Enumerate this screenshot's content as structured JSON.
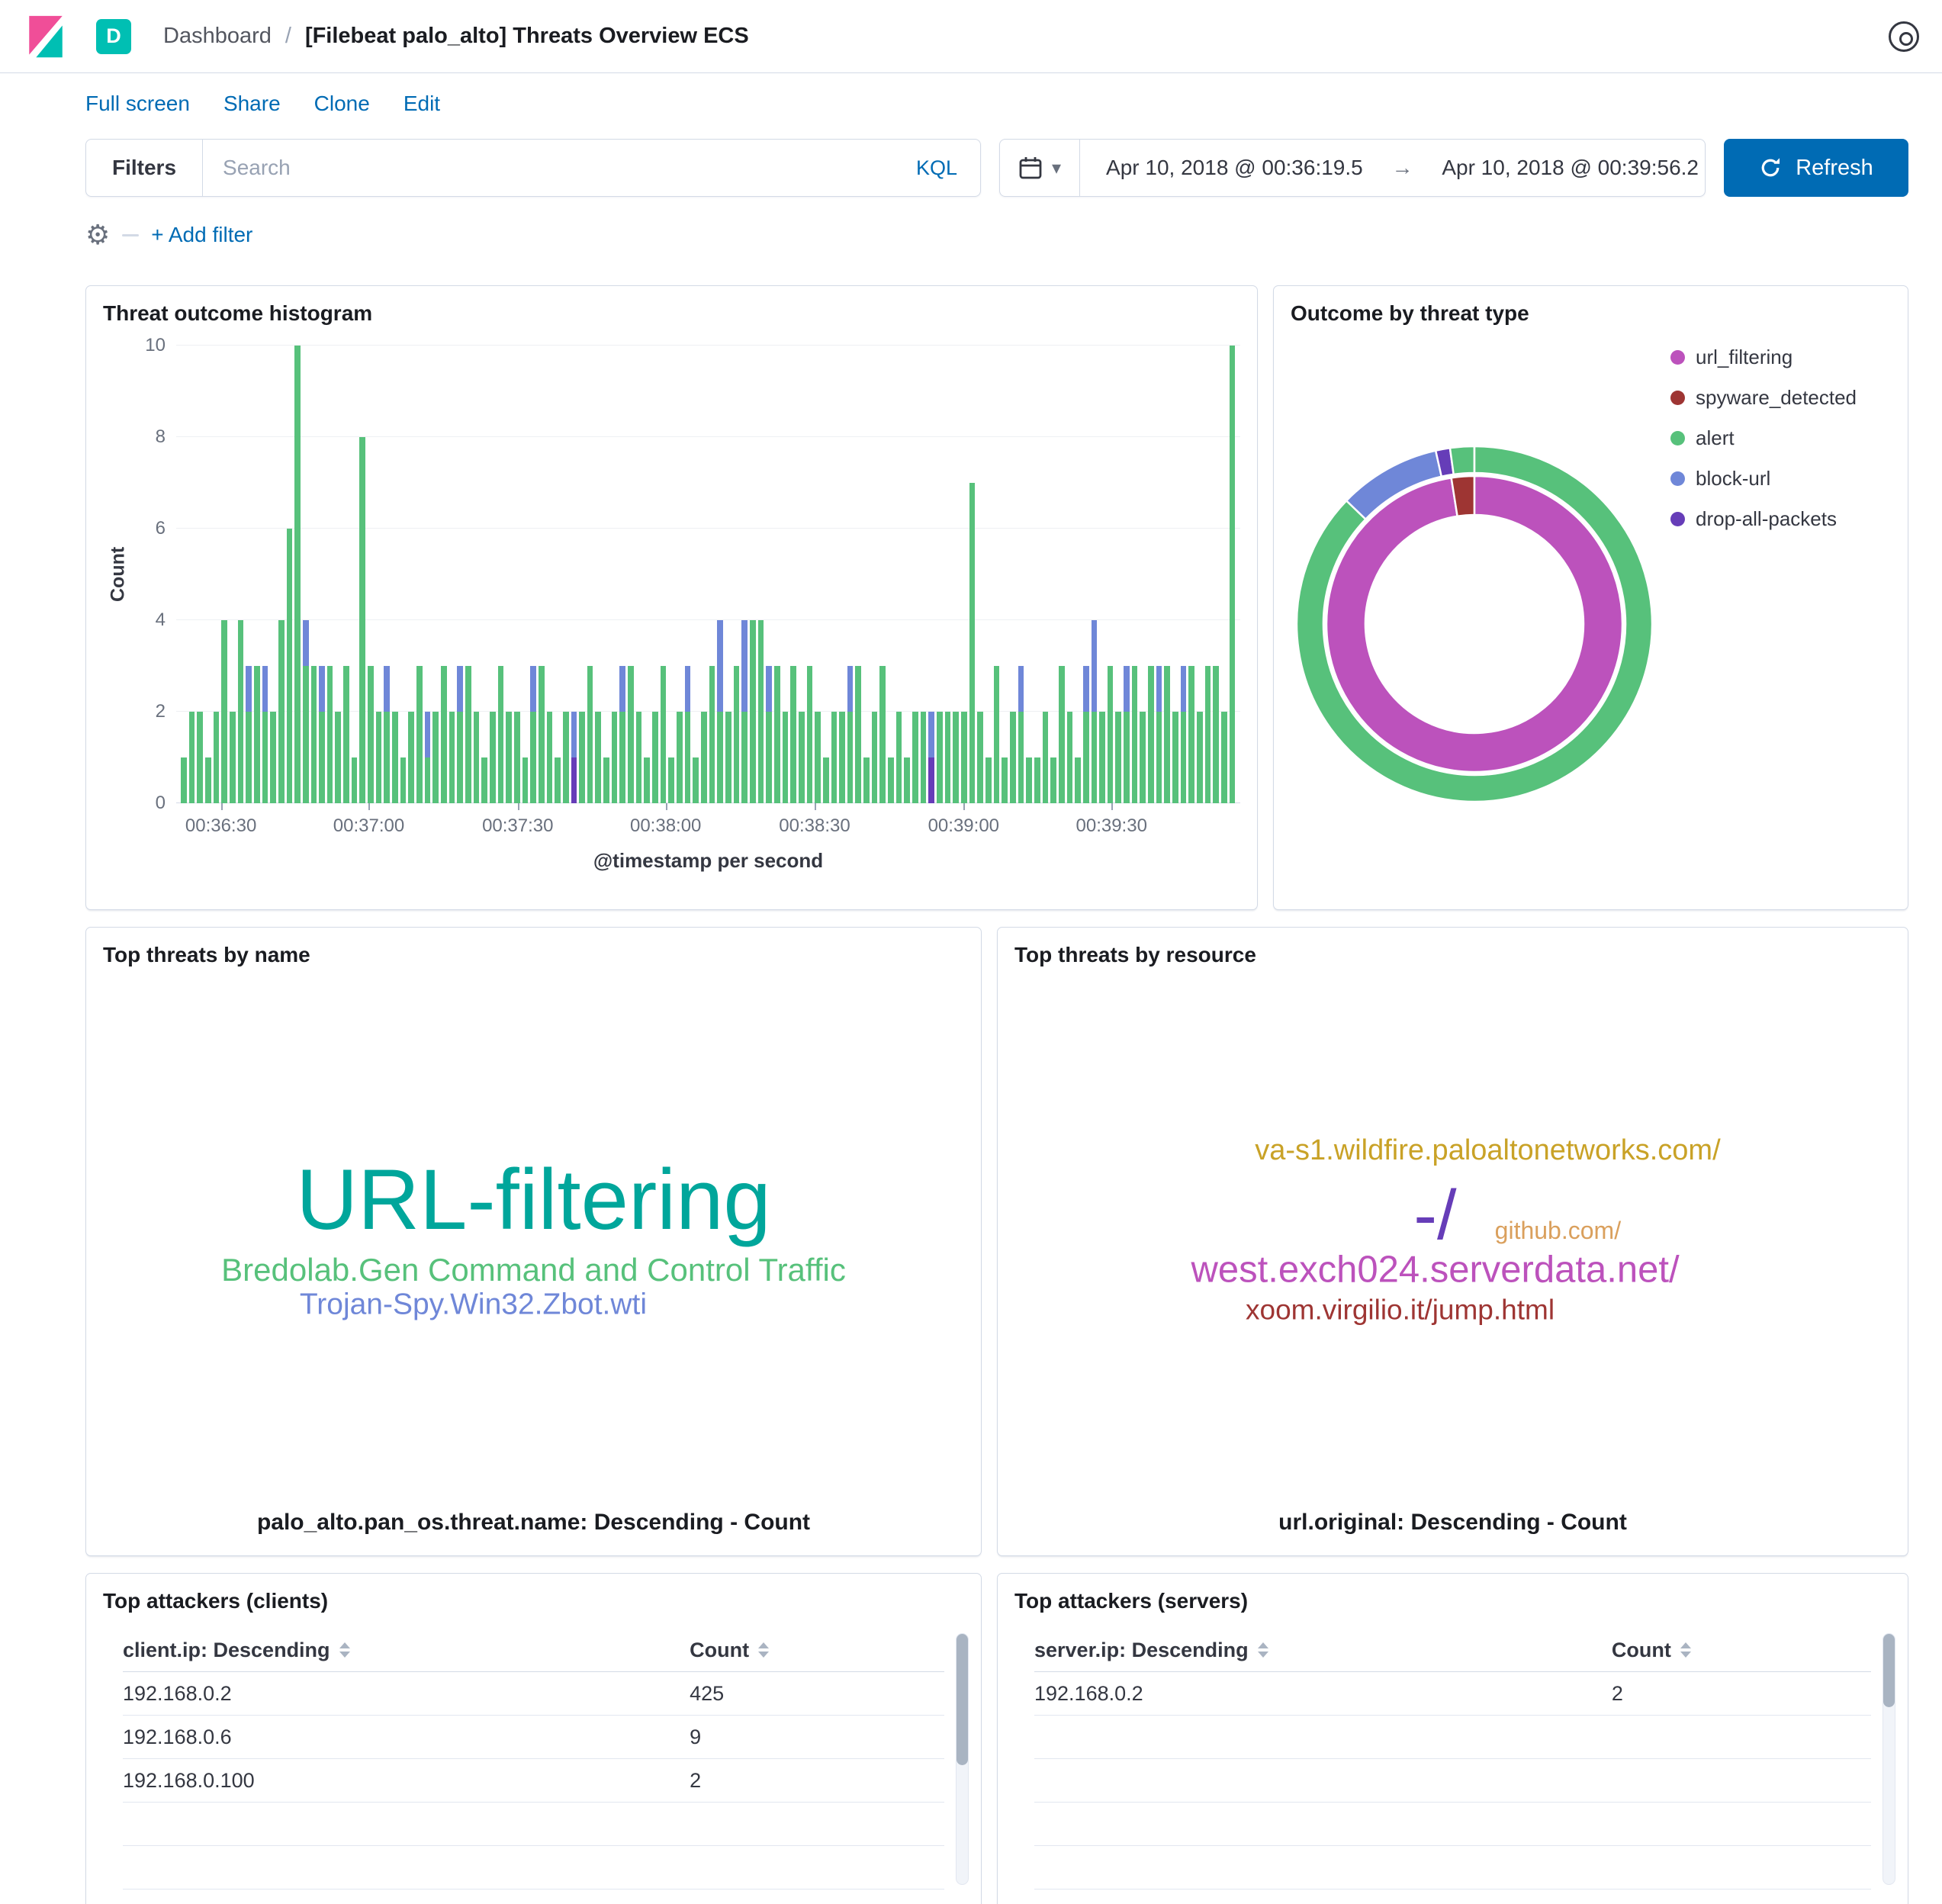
{
  "app": {
    "header": {
      "space_badge": "D",
      "breadcrumb": "Dashboard",
      "breadcrumb_separator": "/",
      "title": "[Filebeat palo_alto] Threats Overview ECS"
    },
    "menu": {
      "items": [
        "Full screen",
        "Share",
        "Clone",
        "Edit"
      ]
    },
    "query_bar": {
      "filters_label": "Filters",
      "search_placeholder": "Search",
      "kql_label": "KQL",
      "date_from": "Apr 10, 2018 @ 00:36:19.5",
      "date_arrow": "→",
      "date_to": "Apr 10, 2018 @ 00:39:56.2",
      "refresh_label": "Refresh",
      "add_filter_label": "+ Add filter"
    }
  },
  "colors": {
    "primary": "#006bb4",
    "alert_green": "#57c17b",
    "block_url_blue": "#6f87d8",
    "drop_purple": "#663db8",
    "url_filtering_magenta": "#bc52bc",
    "spyware_red": "#9e3533",
    "panel_border": "#d3dae6"
  },
  "panels": {
    "histogram": {
      "title": "Threat outcome histogram",
      "chart_data": {
        "type": "bar",
        "stacked": true,
        "title": "Threat outcome histogram",
        "ylabel": "Count",
        "xlabel": "@timestamp per second",
        "ylim": [
          0,
          10
        ],
        "y_ticks": [
          0,
          2,
          4,
          6,
          8,
          10
        ],
        "grid": true,
        "series": [
          {
            "name": "alert",
            "color": "#57c17b"
          },
          {
            "name": "block-url",
            "color": "#6f87d8"
          },
          {
            "name": "drop-all-packets",
            "color": "#663db8"
          }
        ],
        "x_ticks": [
          {
            "label": "00:36:30",
            "pos": 4.2
          },
          {
            "label": "00:37:00",
            "pos": 18.1
          },
          {
            "label": "00:37:30",
            "pos": 32.1
          },
          {
            "label": "00:38:00",
            "pos": 46.0
          },
          {
            "label": "00:38:30",
            "pos": 60.0
          },
          {
            "label": "00:39:00",
            "pos": 74.0
          },
          {
            "label": "00:39:30",
            "pos": 87.9
          }
        ],
        "bars": [
          [
            1,
            0,
            0
          ],
          [
            2,
            0,
            0
          ],
          [
            2,
            0,
            0
          ],
          [
            1,
            0,
            0
          ],
          [
            2,
            0,
            0
          ],
          [
            4,
            0,
            0
          ],
          [
            2,
            0,
            0
          ],
          [
            4,
            0,
            0
          ],
          [
            2,
            1,
            0
          ],
          [
            3,
            0,
            0
          ],
          [
            2,
            1,
            0
          ],
          [
            2,
            0,
            0
          ],
          [
            4,
            0,
            0
          ],
          [
            6,
            0,
            0
          ],
          [
            10,
            0,
            0
          ],
          [
            3,
            1,
            0
          ],
          [
            3,
            0,
            0
          ],
          [
            2,
            1,
            0
          ],
          [
            3,
            0,
            0
          ],
          [
            2,
            0,
            0
          ],
          [
            3,
            0,
            0
          ],
          [
            1,
            0,
            0
          ],
          [
            8,
            0,
            0
          ],
          [
            3,
            0,
            0
          ],
          [
            2,
            0,
            0
          ],
          [
            2,
            1,
            0
          ],
          [
            2,
            0,
            0
          ],
          [
            1,
            0,
            0
          ],
          [
            2,
            0,
            0
          ],
          [
            3,
            0,
            0
          ],
          [
            1,
            1,
            0
          ],
          [
            2,
            0,
            0
          ],
          [
            3,
            0,
            0
          ],
          [
            2,
            0,
            0
          ],
          [
            2,
            1,
            0
          ],
          [
            3,
            0,
            0
          ],
          [
            2,
            0,
            0
          ],
          [
            1,
            0,
            0
          ],
          [
            2,
            0,
            0
          ],
          [
            3,
            0,
            0
          ],
          [
            2,
            0,
            0
          ],
          [
            2,
            0,
            0
          ],
          [
            1,
            0,
            0
          ],
          [
            2,
            1,
            0
          ],
          [
            3,
            0,
            0
          ],
          [
            2,
            0,
            0
          ],
          [
            1,
            0,
            0
          ],
          [
            2,
            0,
            0
          ],
          [
            0,
            1,
            1
          ],
          [
            2,
            0,
            0
          ],
          [
            3,
            0,
            0
          ],
          [
            2,
            0,
            0
          ],
          [
            1,
            0,
            0
          ],
          [
            2,
            0,
            0
          ],
          [
            2,
            1,
            0
          ],
          [
            3,
            0,
            0
          ],
          [
            2,
            0,
            0
          ],
          [
            1,
            0,
            0
          ],
          [
            2,
            0,
            0
          ],
          [
            3,
            0,
            0
          ],
          [
            1,
            0,
            0
          ],
          [
            2,
            0,
            0
          ],
          [
            2,
            1,
            0
          ],
          [
            1,
            0,
            0
          ],
          [
            2,
            0,
            0
          ],
          [
            3,
            0,
            0
          ],
          [
            2,
            2,
            0
          ],
          [
            2,
            0,
            0
          ],
          [
            3,
            0,
            0
          ],
          [
            2,
            2,
            0
          ],
          [
            4,
            0,
            0
          ],
          [
            4,
            0,
            0
          ],
          [
            2,
            1,
            0
          ],
          [
            3,
            0,
            0
          ],
          [
            2,
            0,
            0
          ],
          [
            3,
            0,
            0
          ],
          [
            2,
            0,
            0
          ],
          [
            3,
            0,
            0
          ],
          [
            2,
            0,
            0
          ],
          [
            1,
            0,
            0
          ],
          [
            2,
            0,
            0
          ],
          [
            2,
            0,
            0
          ],
          [
            2,
            1,
            0
          ],
          [
            3,
            0,
            0
          ],
          [
            1,
            0,
            0
          ],
          [
            2,
            0,
            0
          ],
          [
            3,
            0,
            0
          ],
          [
            1,
            0,
            0
          ],
          [
            2,
            0,
            0
          ],
          [
            1,
            0,
            0
          ],
          [
            2,
            0,
            0
          ],
          [
            2,
            0,
            0
          ],
          [
            0,
            1,
            1
          ],
          [
            2,
            0,
            0
          ],
          [
            2,
            0,
            0
          ],
          [
            2,
            0,
            0
          ],
          [
            2,
            0,
            0
          ],
          [
            7,
            0,
            0
          ],
          [
            2,
            0,
            0
          ],
          [
            1,
            0,
            0
          ],
          [
            3,
            0,
            0
          ],
          [
            1,
            0,
            0
          ],
          [
            2,
            0,
            0
          ],
          [
            2,
            1,
            0
          ],
          [
            1,
            0,
            0
          ],
          [
            1,
            0,
            0
          ],
          [
            2,
            0,
            0
          ],
          [
            1,
            0,
            0
          ],
          [
            3,
            0,
            0
          ],
          [
            2,
            0,
            0
          ],
          [
            1,
            0,
            0
          ],
          [
            2,
            1,
            0
          ],
          [
            2,
            2,
            0
          ],
          [
            2,
            0,
            0
          ],
          [
            3,
            0,
            0
          ],
          [
            2,
            0,
            0
          ],
          [
            2,
            1,
            0
          ],
          [
            3,
            0,
            0
          ],
          [
            2,
            0,
            0
          ],
          [
            3,
            0,
            0
          ],
          [
            2,
            1,
            0
          ],
          [
            3,
            0,
            0
          ],
          [
            2,
            0,
            0
          ],
          [
            2,
            1,
            0
          ],
          [
            3,
            0,
            0
          ],
          [
            2,
            0,
            0
          ],
          [
            3,
            0,
            0
          ],
          [
            3,
            0,
            0
          ],
          [
            2,
            0,
            0
          ],
          [
            10,
            0,
            0
          ]
        ]
      }
    },
    "donut": {
      "title": "Outcome by threat type",
      "legend": [
        {
          "label": "url_filtering",
          "color": "#bc52bc"
        },
        {
          "label": "spyware_detected",
          "color": "#9e3533"
        },
        {
          "label": "alert",
          "color": "#57c17b"
        },
        {
          "label": "block-url",
          "color": "#6f87d8"
        },
        {
          "label": "drop-all-packets",
          "color": "#663db8"
        }
      ],
      "chart_data": {
        "type": "pie",
        "donut": true,
        "legend_position": "right",
        "rings": [
          {
            "level": "outcome",
            "r0": 198,
            "r1": 233,
            "slices": [
              {
                "label": "alert",
                "frac": 0.872,
                "color": "#57c17b"
              },
              {
                "label": "block-url",
                "frac": 0.093,
                "color": "#6f87d8"
              },
              {
                "label": "drop-all-packets",
                "frac": 0.013,
                "color": "#663db8"
              },
              {
                "label": "alert",
                "frac": 0.022,
                "color": "#57c17b"
              }
            ]
          },
          {
            "level": "threat_type",
            "r0": 143,
            "r1": 194,
            "slices": [
              {
                "label": "url_filtering",
                "frac": 0.975,
                "color": "#bc52bc"
              },
              {
                "label": "spyware_detected",
                "frac": 0.025,
                "color": "#9e3533"
              }
            ]
          }
        ]
      }
    },
    "tag_name": {
      "title": "Top threats by name",
      "footer": "palo_alto.pan_os.threat.name: Descending - Count",
      "chart_data": {
        "type": "tagcloud",
        "tags": [
          {
            "text": "URL-filtering",
            "color": "#00a69b",
            "size": 112,
            "x": 50,
            "y": 44
          },
          {
            "text": "Bredolab.Gen Command and Control Traffic",
            "color": "#57c17b",
            "size": 42,
            "x": 50,
            "y": 58
          },
          {
            "text": "Trojan-Spy.Win32.Zbot.wti",
            "color": "#6f87d8",
            "size": 39,
            "x": 43,
            "y": 65
          }
        ]
      }
    },
    "tag_resource": {
      "title": "Top threats by resource",
      "footer": "url.original: Descending - Count",
      "chart_data": {
        "type": "tagcloud",
        "tags": [
          {
            "text": "va-s1.wildfire.paloaltonetworks.com/",
            "color": "#c9a227",
            "size": 38,
            "x": 54,
            "y": 34
          },
          {
            "text": "-/",
            "color": "#663db8",
            "size": 92,
            "x": 48,
            "y": 47
          },
          {
            "text": "github.com/",
            "color": "#daa05d",
            "size": 32,
            "x": 62,
            "y": 50
          },
          {
            "text": "west.exch024.serverdata.net/",
            "color": "#bc52bc",
            "size": 49,
            "x": 48,
            "y": 58
          },
          {
            "text": "xoom.virgilio.it/jump.html",
            "color": "#9e3533",
            "size": 37,
            "x": 44,
            "y": 66
          }
        ]
      }
    },
    "clients": {
      "title": "Top attackers (clients)",
      "chart_data": {
        "type": "table",
        "columns": [
          "client.ip: Descending",
          "Count"
        ],
        "rows": [
          [
            "192.168.0.2",
            "425"
          ],
          [
            "192.168.0.6",
            "9"
          ],
          [
            "192.168.0.100",
            "2"
          ]
        ],
        "empty_rows": 2
      }
    },
    "servers": {
      "title": "Top attackers (servers)",
      "chart_data": {
        "type": "table",
        "columns": [
          "server.ip: Descending",
          "Count"
        ],
        "rows": [
          [
            "192.168.0.2",
            "2"
          ]
        ],
        "empty_rows": 4
      }
    }
  }
}
